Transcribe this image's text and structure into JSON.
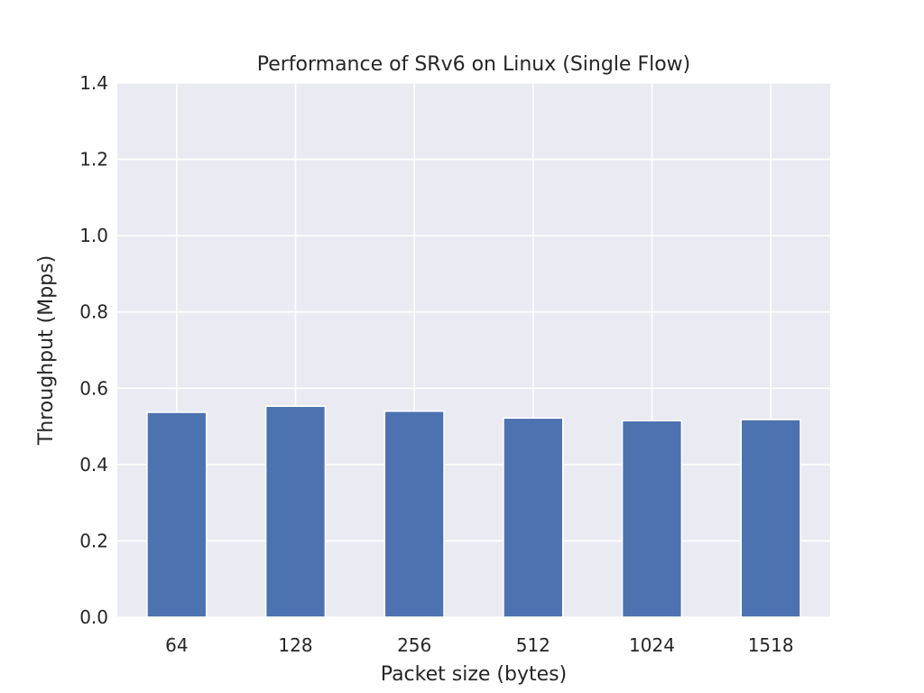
{
  "chart_data": {
    "type": "bar",
    "title": "Performance of SRv6 on Linux (Single Flow)",
    "xlabel": "Packet size (bytes)",
    "ylabel": "Throughput (Mpps)",
    "categories": [
      "64",
      "128",
      "256",
      "512",
      "1024",
      "1518"
    ],
    "values": [
      0.537,
      0.553,
      0.54,
      0.522,
      0.515,
      0.518
    ],
    "ylim": [
      0,
      1.4
    ],
    "yticks": [
      "0.0",
      "0.2",
      "0.4",
      "0.6",
      "0.8",
      "1.0",
      "1.2",
      "1.4"
    ],
    "grid": true,
    "legend": "none",
    "colors": {
      "bar": "#4c72b0",
      "plot_background": "#eaeaf2",
      "grid": "#ffffff",
      "text": "#262626"
    }
  }
}
